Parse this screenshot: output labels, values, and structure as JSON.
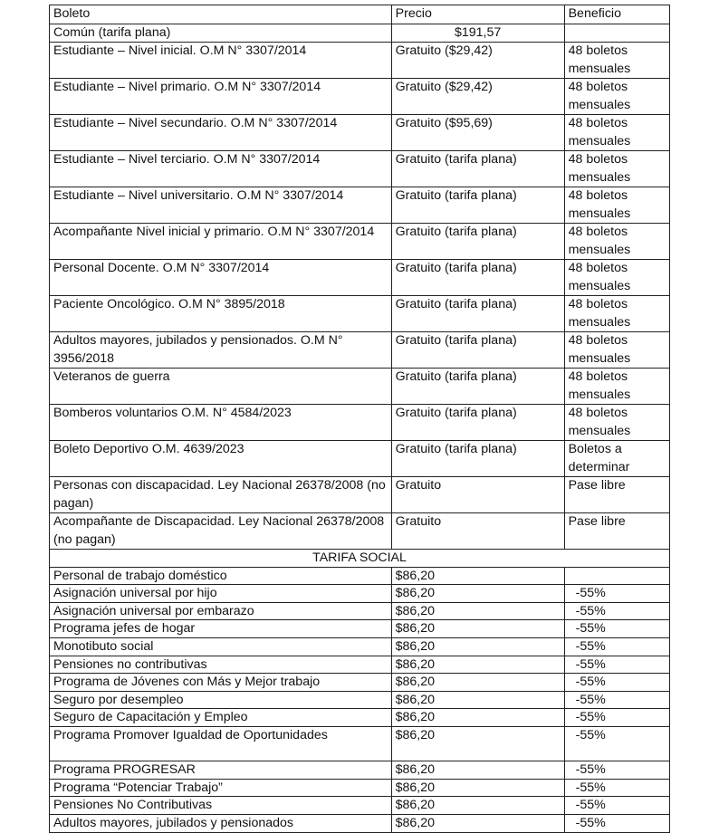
{
  "headers": {
    "boleto": "Boleto",
    "precio": "Precio",
    "beneficio": "Beneficio"
  },
  "rows": [
    {
      "boleto": "Común (tarifa plana)",
      "precio": "$191,57",
      "beneficio": ""
    },
    {
      "boleto": "Estudiante – Nivel inicial. O.M N° 3307/2014",
      "precio": "Gratuito ($29,42)",
      "beneficio": "48 boletos mensuales"
    },
    {
      "boleto": "Estudiante – Nivel primario. O.M N° 3307/2014",
      "precio": "Gratuito ($29,42)",
      "beneficio": "48 boletos mensuales"
    },
    {
      "boleto": "Estudiante – Nivel secundario. O.M N° 3307/2014",
      "precio": "Gratuito ($95,69)",
      "beneficio": "48 boletos mensuales"
    },
    {
      "boleto": "Estudiante – Nivel terciario. O.M N° 3307/2014",
      "precio": "Gratuito (tarifa plana)",
      "beneficio": "48 boletos mensuales"
    },
    {
      "boleto": "Estudiante – Nivel universitario. O.M N° 3307/2014",
      "precio": "Gratuito (tarifa plana)",
      "beneficio": "48 boletos mensuales"
    },
    {
      "boleto": "Acompañante Nivel inicial y primario. O.M N° 3307/2014",
      "precio": "Gratuito (tarifa plana)",
      "beneficio": "48 boletos mensuales"
    },
    {
      "boleto": "Personal Docente. O.M N° 3307/2014",
      "precio": "Gratuito (tarifa plana)",
      "beneficio": "48 boletos mensuales"
    },
    {
      "boleto": "Paciente Oncológico. O.M N° 3895/2018",
      "precio": "Gratuito (tarifa plana)",
      "beneficio": "48 boletos mensuales"
    },
    {
      "boleto": "Adultos mayores, jubilados y pensionados. O.M N° 3956/2018",
      "precio": "Gratuito (tarifa plana)",
      "beneficio": "48 boletos mensuales"
    },
    {
      "boleto": "Veteranos de guerra",
      "precio": "Gratuito (tarifa plana)",
      "beneficio": "48 boletos mensuales"
    },
    {
      "boleto": "Bomberos voluntarios O.M. N° 4584/2023",
      "precio": "Gratuito (tarifa plana)",
      "beneficio": "48 boletos mensuales"
    },
    {
      "boleto": "Boleto Deportivo O.M. 4639/2023",
      "precio": "Gratuito (tarifa plana)",
      "beneficio": "Boletos a determinar"
    },
    {
      "boleto": "Personas con discapacidad. Ley Nacional 26378/2008 (no pagan)",
      "precio": "Gratuito",
      "beneficio": "Pase libre"
    },
    {
      "boleto": "Acompañante de Discapacidad. Ley Nacional 26378/2008 (no pagan)",
      "precio": "Gratuito",
      "beneficio": "Pase libre"
    }
  ],
  "social_title": "TARIFA SOCIAL",
  "social_rows": [
    {
      "boleto": "Personal de trabajo doméstico",
      "precio": "$86,20",
      "beneficio": ""
    },
    {
      "boleto": "Asignación universal por hijo",
      "precio": "$86,20",
      "beneficio": "-55%"
    },
    {
      "boleto": "Asignación universal por embarazo",
      "precio": "$86,20",
      "beneficio": "-55%"
    },
    {
      "boleto": "Programa jefes de hogar",
      "precio": "$86,20",
      "beneficio": "-55%"
    },
    {
      "boleto": "Monotibuto social",
      "precio": "$86,20",
      "beneficio": "-55%"
    },
    {
      "boleto": "Pensiones no contributivas",
      "precio": "$86,20",
      "beneficio": "-55%"
    },
    {
      "boleto": "Programa de Jóvenes con Más y Mejor trabajo",
      "precio": "$86,20",
      "beneficio": "-55%"
    },
    {
      "boleto": "Seguro por desempleo",
      "precio": "$86,20",
      "beneficio": "-55%"
    },
    {
      "boleto": "Seguro de Capacitación y Empleo",
      "precio": "$86,20",
      "beneficio": "-55%"
    },
    {
      "boleto": "Programa Promover Igualdad de Oportunidades",
      "precio": "$86,20",
      "beneficio": "-55%"
    },
    {
      "boleto": "Programa PROGRESAR",
      "precio": "$86,20",
      "beneficio": "-55%"
    },
    {
      "boleto": "Programa “Potenciar Trabajo”",
      "precio": "$86,20",
      "beneficio": "-55%"
    },
    {
      "boleto": "Pensiones No Contributivas",
      "precio": "$86,20",
      "beneficio": "-55%"
    },
    {
      "boleto": "Adultos mayores, jubilados y pensionados",
      "precio": "$86,20",
      "beneficio": "-55%"
    }
  ]
}
